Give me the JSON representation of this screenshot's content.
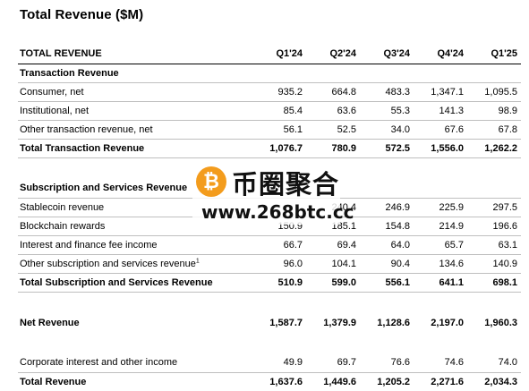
{
  "title": "Total Revenue ($M)",
  "columns": [
    "TOTAL REVENUE",
    "Q1'24",
    "Q2'24",
    "Q3'24",
    "Q4'24",
    "Q1'25"
  ],
  "sections": {
    "transaction": {
      "heading": "Transaction Revenue",
      "rows": [
        {
          "label": "Consumer, net",
          "values": [
            "935.2",
            "664.8",
            "483.3",
            "1,347.1",
            "1,095.5"
          ]
        },
        {
          "label": "Institutional, net",
          "values": [
            "85.4",
            "63.6",
            "55.3",
            "141.3",
            "98.9"
          ]
        },
        {
          "label": "Other transaction revenue, net",
          "values": [
            "56.1",
            "52.5",
            "34.0",
            "67.6",
            "67.8"
          ]
        }
      ],
      "total": {
        "label": "Total Transaction Revenue",
        "values": [
          "1,076.7",
          "780.9",
          "572.5",
          "1,556.0",
          "1,262.2"
        ]
      }
    },
    "subscription": {
      "heading": "Subscription and Services Revenue",
      "rows": [
        {
          "label": "Stablecoin revenue",
          "values": [
            "",
            "240.4",
            "246.9",
            "225.9",
            "297.5"
          ]
        },
        {
          "label": "Blockchain rewards",
          "values": [
            "150.9",
            "185.1",
            "154.8",
            "214.9",
            "196.6"
          ]
        },
        {
          "label": "Interest and finance fee income",
          "values": [
            "66.7",
            "69.4",
            "64.0",
            "65.7",
            "63.1"
          ]
        },
        {
          "label": "Other subscription and services revenue",
          "footnote": "1",
          "values": [
            "96.0",
            "104.1",
            "90.4",
            "134.6",
            "140.9"
          ]
        }
      ],
      "total": {
        "label": "Total Subscription and Services Revenue",
        "values": [
          "510.9",
          "599.0",
          "556.1",
          "641.1",
          "698.1"
        ]
      }
    }
  },
  "net_revenue": {
    "label": "Net Revenue",
    "values": [
      "1,587.7",
      "1,379.9",
      "1,128.6",
      "2,197.0",
      "1,960.3"
    ]
  },
  "corporate": {
    "label": "Corporate interest and other income",
    "values": [
      "49.9",
      "69.7",
      "76.6",
      "74.6",
      "74.0"
    ]
  },
  "grand_total": {
    "label": "Total Revenue",
    "values": [
      "1,637.6",
      "1,449.6",
      "1,205.2",
      "2,271.6",
      "2,034.3"
    ]
  },
  "watermark": {
    "name": "币圈聚合",
    "url": "www.268btc.cc",
    "coin_symbol": "₿"
  },
  "colors": {
    "text": "#000000",
    "rule": "#bfbfbf",
    "coin": "#f39c1d"
  }
}
